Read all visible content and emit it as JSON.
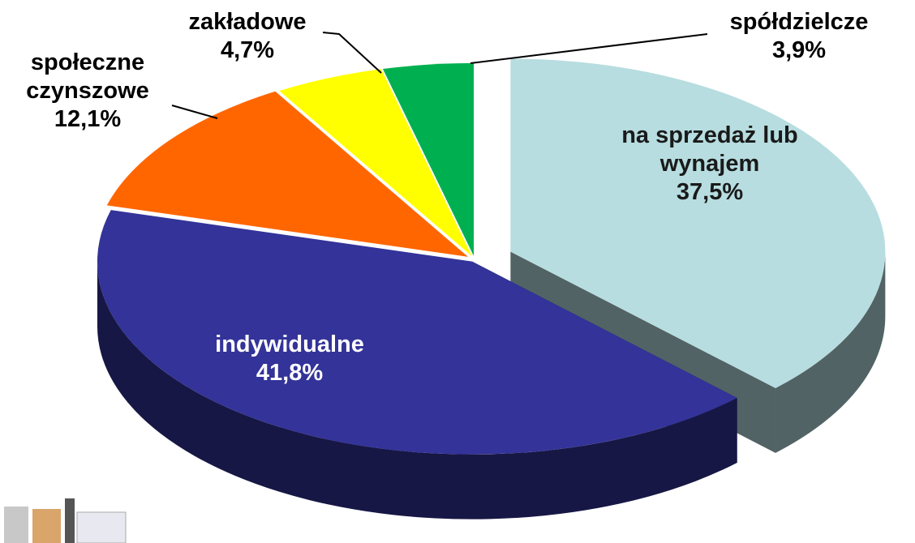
{
  "chart_data": {
    "type": "pie",
    "categories": [
      "na sprzedaż lub wynajem",
      "indywidualne",
      "społeczne czynszowe",
      "zakładowe",
      "spółdzielcze"
    ],
    "values": [
      37.5,
      41.8,
      12.1,
      4.7,
      3.9
    ],
    "value_labels": [
      "37,5%",
      "41,8%",
      "12,1%",
      "4,7%",
      "3,9%"
    ],
    "colors": [
      "#b7dde0",
      "#333399",
      "#ff6600",
      "#ffff00",
      "#00b050"
    ]
  }
}
